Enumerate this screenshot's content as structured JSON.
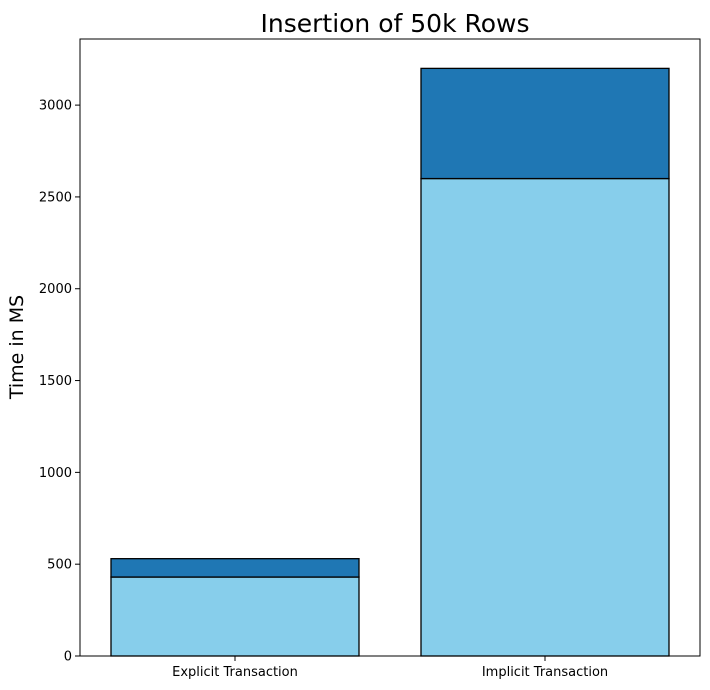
{
  "chart_data": {
    "type": "bar",
    "stacked": true,
    "title": "Insertion of 50k Rows",
    "xlabel": "",
    "ylabel": "Time in MS",
    "categories": [
      "Explicit Transaction",
      "Implicit Transaction"
    ],
    "series": [
      {
        "values": [
          430,
          2600
        ],
        "color": "#87ceeb"
      },
      {
        "values": [
          100,
          600
        ],
        "color": "#1f77b4"
      }
    ],
    "ylim": [
      0,
      3360
    ],
    "yticks": [
      0,
      500,
      1000,
      1500,
      2000,
      2500,
      3000
    ],
    "grid": false,
    "legend": "none"
  }
}
